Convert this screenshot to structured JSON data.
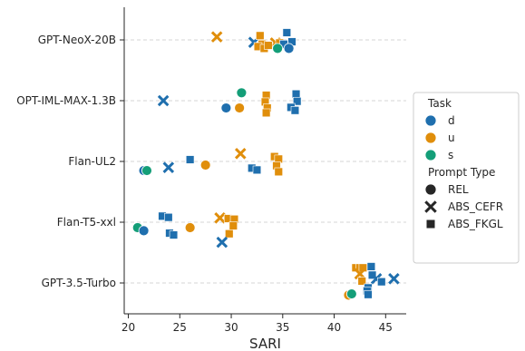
{
  "chart_data": {
    "type": "scatter",
    "title": "",
    "xlabel": "SARI",
    "ylabel": "",
    "xlim": [
      19.6,
      47.0
    ],
    "xticks": [
      20,
      25,
      30,
      35,
      40,
      45
    ],
    "categories": [
      "GPT-NeoX-20B",
      "OPT-IML-MAX-1.3B",
      "Flan-UL2",
      "Flan-T5-xxl",
      "GPT-3.5-Turbo"
    ],
    "grid": "horizontal dashed",
    "legend_placement": "right",
    "legend": {
      "task_title": "Task",
      "tasks": [
        {
          "name": "d",
          "color": "#1f6fae"
        },
        {
          "name": "u",
          "color": "#e08e0b"
        },
        {
          "name": "s",
          "color": "#149e78"
        }
      ],
      "type_title": "Prompt Type",
      "types": [
        {
          "name": "REL",
          "marker": "circle"
        },
        {
          "name": "ABS_CEFR",
          "marker": "x"
        },
        {
          "name": "ABS_FKGL",
          "marker": "square"
        }
      ]
    },
    "points": [
      {
        "model": 0,
        "task": "u",
        "type": "ABS_CEFR",
        "x": 28.6,
        "dy": -0.05
      },
      {
        "model": 0,
        "task": "d",
        "type": "ABS_CEFR",
        "x": 32.2,
        "dy": 0.04
      },
      {
        "model": 0,
        "task": "u",
        "type": "ABS_CEFR",
        "x": 34.3,
        "dy": 0.05
      },
      {
        "model": 0,
        "task": "u",
        "type": "ABS_FKGL",
        "x": 32.8,
        "dy": -0.07
      },
      {
        "model": 0,
        "task": "u",
        "type": "ABS_FKGL",
        "x": 33.0,
        "dy": 0.07
      },
      {
        "model": 0,
        "task": "u",
        "type": "ABS_FKGL",
        "x": 32.6,
        "dy": 0.11
      },
      {
        "model": 0,
        "task": "u",
        "type": "ABS_FKGL",
        "x": 33.2,
        "dy": 0.14
      },
      {
        "model": 0,
        "task": "u",
        "type": "ABS_FKGL",
        "x": 34.7,
        "dy": 0.05
      },
      {
        "model": 0,
        "task": "u",
        "type": "ABS_FKGL",
        "x": 33.6,
        "dy": 0.09
      },
      {
        "model": 0,
        "task": "d",
        "type": "ABS_FKGL",
        "x": 35.4,
        "dy": -0.12
      },
      {
        "model": 0,
        "task": "d",
        "type": "ABS_FKGL",
        "x": 35.9,
        "dy": 0.03
      },
      {
        "model": 0,
        "task": "d",
        "type": "ABS_FKGL",
        "x": 35.1,
        "dy": 0.07
      },
      {
        "model": 0,
        "task": "d",
        "type": "REL",
        "x": 35.6,
        "dy": 0.14
      },
      {
        "model": 0,
        "task": "s",
        "type": "REL",
        "x": 34.5,
        "dy": 0.14
      },
      {
        "model": 1,
        "task": "d",
        "type": "ABS_CEFR",
        "x": 23.4,
        "dy": 0.0
      },
      {
        "model": 1,
        "task": "d",
        "type": "REL",
        "x": 29.5,
        "dy": 0.12
      },
      {
        "model": 1,
        "task": "u",
        "type": "REL",
        "x": 30.8,
        "dy": 0.12
      },
      {
        "model": 1,
        "task": "s",
        "type": "REL",
        "x": 31.0,
        "dy": -0.13
      },
      {
        "model": 1,
        "task": "u",
        "type": "ABS_FKGL",
        "x": 33.4,
        "dy": -0.09
      },
      {
        "model": 1,
        "task": "u",
        "type": "ABS_FKGL",
        "x": 33.3,
        "dy": 0.02
      },
      {
        "model": 1,
        "task": "u",
        "type": "ABS_FKGL",
        "x": 33.5,
        "dy": 0.12
      },
      {
        "model": 1,
        "task": "u",
        "type": "ABS_FKGL",
        "x": 33.4,
        "dy": 0.2
      },
      {
        "model": 1,
        "task": "d",
        "type": "ABS_FKGL",
        "x": 36.3,
        "dy": -0.11
      },
      {
        "model": 1,
        "task": "d",
        "type": "ABS_FKGL",
        "x": 36.4,
        "dy": 0.01
      },
      {
        "model": 1,
        "task": "d",
        "type": "ABS_FKGL",
        "x": 35.8,
        "dy": 0.11
      },
      {
        "model": 1,
        "task": "d",
        "type": "ABS_FKGL",
        "x": 36.2,
        "dy": 0.16
      },
      {
        "model": 2,
        "task": "d",
        "type": "REL",
        "x": 21.5,
        "dy": 0.15
      },
      {
        "model": 2,
        "task": "s",
        "type": "REL",
        "x": 21.8,
        "dy": 0.15
      },
      {
        "model": 2,
        "task": "d",
        "type": "ABS_CEFR",
        "x": 23.9,
        "dy": 0.1
      },
      {
        "model": 2,
        "task": "d",
        "type": "ABS_FKGL",
        "x": 26.0,
        "dy": -0.03
      },
      {
        "model": 2,
        "task": "u",
        "type": "REL",
        "x": 27.5,
        "dy": 0.06
      },
      {
        "model": 2,
        "task": "u",
        "type": "ABS_CEFR",
        "x": 30.9,
        "dy": -0.13
      },
      {
        "model": 2,
        "task": "d",
        "type": "ABS_FKGL",
        "x": 32.0,
        "dy": 0.11
      },
      {
        "model": 2,
        "task": "d",
        "type": "ABS_FKGL",
        "x": 32.5,
        "dy": 0.14
      },
      {
        "model": 2,
        "task": "u",
        "type": "ABS_FKGL",
        "x": 34.2,
        "dy": -0.08
      },
      {
        "model": 2,
        "task": "u",
        "type": "ABS_FKGL",
        "x": 34.6,
        "dy": -0.04
      },
      {
        "model": 2,
        "task": "u",
        "type": "ABS_FKGL",
        "x": 34.4,
        "dy": 0.07
      },
      {
        "model": 2,
        "task": "u",
        "type": "ABS_FKGL",
        "x": 34.6,
        "dy": 0.17
      },
      {
        "model": 3,
        "task": "s",
        "type": "REL",
        "x": 20.9,
        "dy": 0.09
      },
      {
        "model": 3,
        "task": "d",
        "type": "REL",
        "x": 21.5,
        "dy": 0.14
      },
      {
        "model": 3,
        "task": "d",
        "type": "ABS_FKGL",
        "x": 23.3,
        "dy": -0.1
      },
      {
        "model": 3,
        "task": "d",
        "type": "ABS_FKGL",
        "x": 23.9,
        "dy": -0.08
      },
      {
        "model": 3,
        "task": "d",
        "type": "ABS_FKGL",
        "x": 24.0,
        "dy": 0.18
      },
      {
        "model": 3,
        "task": "d",
        "type": "ABS_FKGL",
        "x": 24.4,
        "dy": 0.21
      },
      {
        "model": 3,
        "task": "u",
        "type": "REL",
        "x": 26.0,
        "dy": 0.09
      },
      {
        "model": 3,
        "task": "u",
        "type": "ABS_CEFR",
        "x": 28.9,
        "dy": -0.07
      },
      {
        "model": 3,
        "task": "u",
        "type": "ABS_FKGL",
        "x": 29.7,
        "dy": -0.06
      },
      {
        "model": 3,
        "task": "u",
        "type": "ABS_FKGL",
        "x": 30.3,
        "dy": -0.05
      },
      {
        "model": 3,
        "task": "u",
        "type": "ABS_FKGL",
        "x": 30.2,
        "dy": 0.06
      },
      {
        "model": 3,
        "task": "u",
        "type": "ABS_FKGL",
        "x": 29.8,
        "dy": 0.19
      },
      {
        "model": 3,
        "task": "d",
        "type": "ABS_CEFR",
        "x": 29.1,
        "dy": 0.33
      },
      {
        "model": 4,
        "task": "u",
        "type": "ABS_FKGL",
        "x": 42.1,
        "dy": -0.25
      },
      {
        "model": 4,
        "task": "u",
        "type": "ABS_FKGL",
        "x": 42.5,
        "dy": -0.25
      },
      {
        "model": 4,
        "task": "u",
        "type": "ABS_FKGL",
        "x": 42.8,
        "dy": -0.25
      },
      {
        "model": 4,
        "task": "d",
        "type": "ABS_FKGL",
        "x": 43.6,
        "dy": -0.27
      },
      {
        "model": 4,
        "task": "d",
        "type": "ABS_FKGL",
        "x": 43.7,
        "dy": -0.13
      },
      {
        "model": 4,
        "task": "d",
        "type": "ABS_CEFR",
        "x": 44.1,
        "dy": -0.07
      },
      {
        "model": 4,
        "task": "d",
        "type": "ABS_CEFR",
        "x": 45.8,
        "dy": -0.07
      },
      {
        "model": 4,
        "task": "u",
        "type": "ABS_CEFR",
        "x": 42.5,
        "dy": -0.15
      },
      {
        "model": 4,
        "task": "u",
        "type": "ABS_FKGL",
        "x": 42.7,
        "dy": -0.03
      },
      {
        "model": 4,
        "task": "d",
        "type": "ABS_FKGL",
        "x": 44.6,
        "dy": -0.02
      },
      {
        "model": 4,
        "task": "d",
        "type": "ABS_FKGL",
        "x": 43.3,
        "dy": 0.08
      },
      {
        "model": 4,
        "task": "d",
        "type": "ABS_FKGL",
        "x": 43.2,
        "dy": 0.13
      },
      {
        "model": 4,
        "task": "u",
        "type": "REL",
        "x": 41.4,
        "dy": 0.2
      },
      {
        "model": 4,
        "task": "s",
        "type": "REL",
        "x": 41.7,
        "dy": 0.18
      },
      {
        "model": 4,
        "task": "d",
        "type": "ABS_FKGL",
        "x": 43.3,
        "dy": 0.19
      }
    ]
  }
}
